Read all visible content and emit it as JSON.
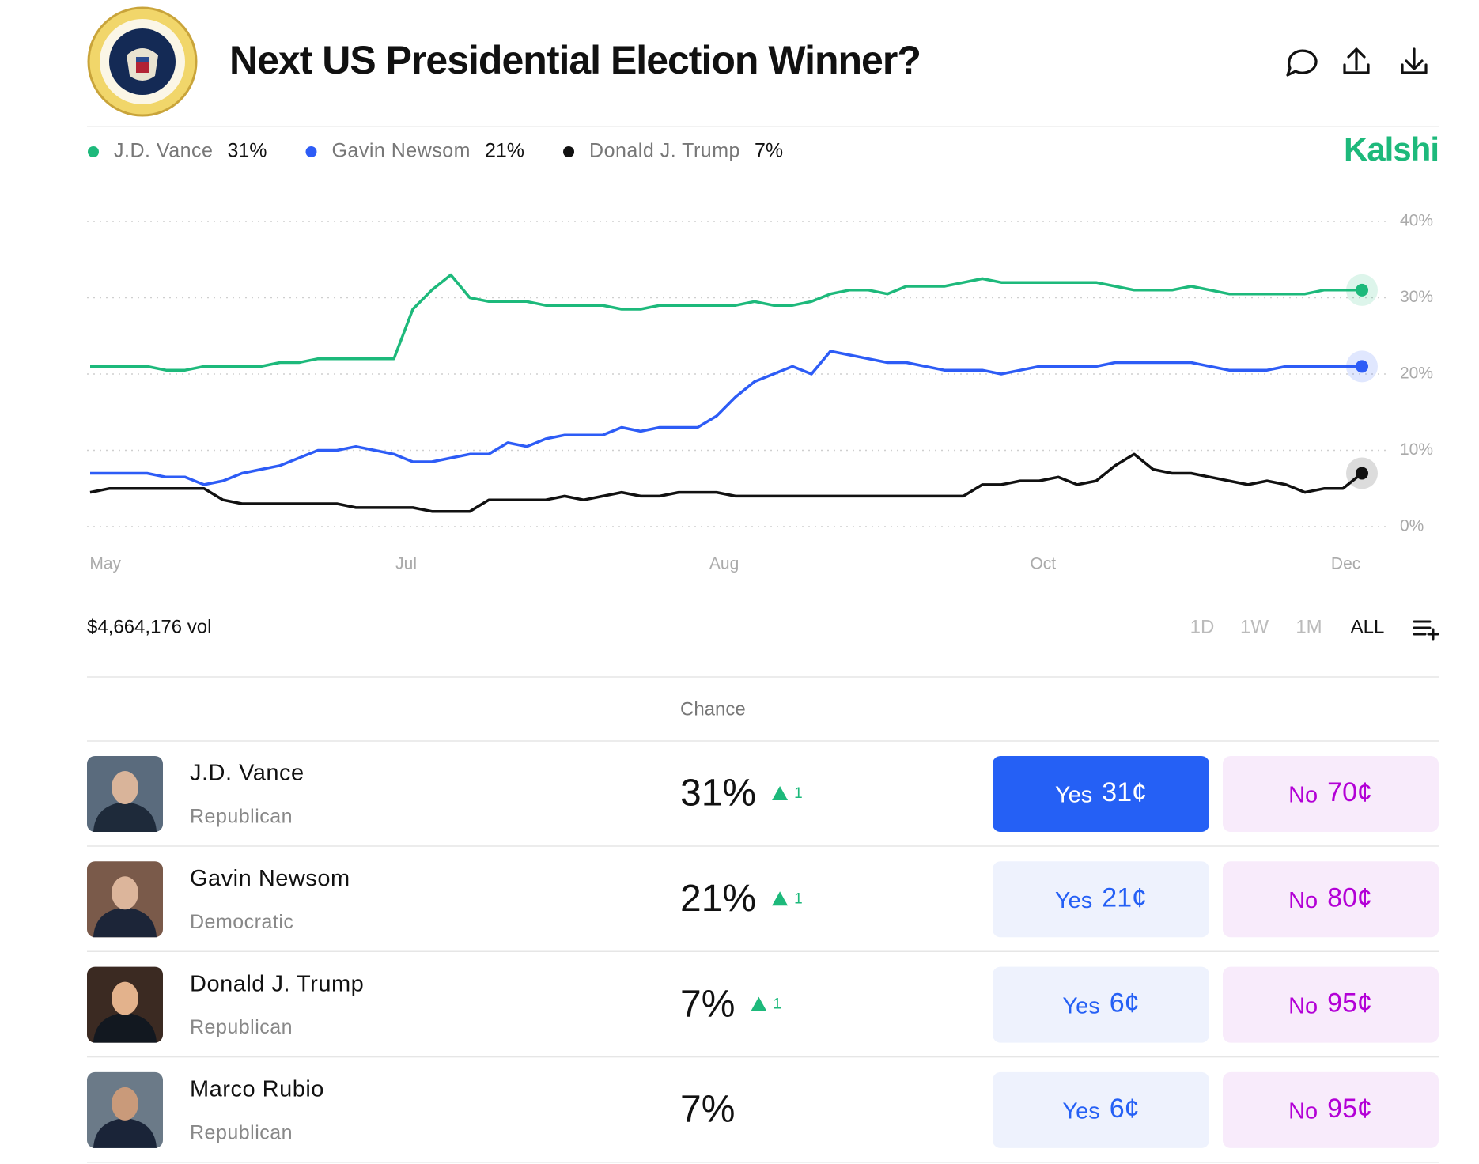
{
  "header": {
    "title": "Next US Presidential Election Winner?",
    "brand": "Kalshi"
  },
  "chart_data": {
    "type": "line",
    "x": [
      0,
      1,
      2,
      3,
      4,
      5,
      6,
      7,
      8,
      9,
      10,
      11,
      12,
      13,
      14,
      15,
      16,
      17,
      18,
      19,
      20,
      21,
      22,
      23,
      24,
      25,
      26,
      27,
      28,
      29,
      30,
      31,
      32,
      33,
      34,
      35,
      36,
      37,
      38,
      39,
      40,
      41,
      42,
      43,
      44,
      45,
      46,
      47,
      48,
      49,
      50,
      51,
      52,
      53,
      54,
      55,
      56,
      57,
      58,
      59,
      60,
      61,
      62,
      63,
      64,
      65,
      66,
      67
    ],
    "xlim": [
      0,
      67
    ],
    "xticks": [
      {
        "value": 0.8,
        "label": "May"
      },
      {
        "value": 16.65,
        "label": "Jul"
      },
      {
        "value": 33.4,
        "label": "Aug"
      },
      {
        "value": 50.2,
        "label": "Oct"
      },
      {
        "value": 66.15,
        "label": "Dec"
      }
    ],
    "ylim": [
      0,
      40
    ],
    "yticks": [
      {
        "value": 0,
        "label": "0%"
      },
      {
        "value": 10,
        "label": "10%"
      },
      {
        "value": 20,
        "label": "20%"
      },
      {
        "value": 30,
        "label": "30%"
      },
      {
        "value": 40,
        "label": "40%"
      }
    ],
    "grid": true,
    "series": [
      {
        "name": "J.D. Vance",
        "color": "#1db97b",
        "current": "31%",
        "values": [
          21,
          21,
          21,
          21,
          20.5,
          20.5,
          21,
          21,
          21,
          21,
          21.5,
          21.5,
          22,
          22,
          22,
          22,
          22,
          28.5,
          31,
          33,
          30,
          29.5,
          29.5,
          29.5,
          29,
          29,
          29,
          29,
          28.5,
          28.5,
          29,
          29,
          29,
          29,
          29,
          29.5,
          29,
          29,
          29.5,
          30.5,
          31,
          31,
          30.5,
          31.5,
          31.5,
          31.5,
          32,
          32.5,
          32,
          32,
          32,
          32,
          32,
          32,
          31.5,
          31,
          31,
          31,
          31.5,
          31,
          30.5,
          30.5,
          30.5,
          30.5,
          30.5,
          31,
          31,
          31
        ]
      },
      {
        "name": "Gavin Newsom",
        "color": "#2d5cf6",
        "current": "21%",
        "values": [
          7,
          7,
          7,
          7,
          6.5,
          6.5,
          5.5,
          6,
          7,
          7.5,
          8,
          9,
          10,
          10,
          10.5,
          10,
          9.5,
          8.5,
          8.5,
          9,
          9.5,
          9.5,
          11,
          10.5,
          11.5,
          12,
          12,
          12,
          13,
          12.5,
          13,
          13,
          13,
          14.5,
          17,
          19,
          20,
          21,
          20,
          23,
          22.5,
          22,
          21.5,
          21.5,
          21,
          20.5,
          20.5,
          20.5,
          20,
          20.5,
          21,
          21,
          21,
          21,
          21.5,
          21.5,
          21.5,
          21.5,
          21.5,
          21,
          20.5,
          20.5,
          20.5,
          21,
          21,
          21,
          21,
          21
        ]
      },
      {
        "name": "Donald J. Trump",
        "color": "#111111",
        "current": "7%",
        "values": [
          4.5,
          5,
          5,
          5,
          5,
          5,
          5,
          3.5,
          3,
          3,
          3,
          3,
          3,
          3,
          2.5,
          2.5,
          2.5,
          2.5,
          2,
          2,
          2,
          3.5,
          3.5,
          3.5,
          3.5,
          4,
          3.5,
          4,
          4.5,
          4,
          4,
          4.5,
          4.5,
          4.5,
          4,
          4,
          4,
          4,
          4,
          4,
          4,
          4,
          4,
          4,
          4,
          4,
          4,
          5.5,
          5.5,
          6,
          6,
          6.5,
          5.5,
          6,
          8,
          9.5,
          7.5,
          7,
          7,
          6.5,
          6,
          5.5,
          6,
          5.5,
          4.5,
          5,
          5,
          7
        ]
      }
    ]
  },
  "volume": "$4,664,176 vol",
  "ranges": [
    "1D",
    "1W",
    "1M",
    "ALL"
  ],
  "table": {
    "header": "Chance",
    "rows": [
      {
        "name": "J.D. Vance",
        "party": "Republican",
        "chance": "31%",
        "change": 1,
        "yes": "Yes",
        "yes_price": "31¢",
        "no": "No",
        "no_price": "70¢"
      },
      {
        "name": "Gavin Newsom",
        "party": "Democratic",
        "chance": "21%",
        "change": 1,
        "yes": "Yes",
        "yes_price": "21¢",
        "no": "No",
        "no_price": "80¢"
      },
      {
        "name": "Donald J. Trump",
        "party": "Republican",
        "chance": "7%",
        "change": 1,
        "yes": "Yes",
        "yes_price": "6¢",
        "no": "No",
        "no_price": "95¢"
      },
      {
        "name": "Marco Rubio",
        "party": "Republican",
        "chance": "7%",
        "yes": "Yes",
        "yes_price": "6¢",
        "no": "No",
        "no_price": "95¢"
      }
    ]
  }
}
